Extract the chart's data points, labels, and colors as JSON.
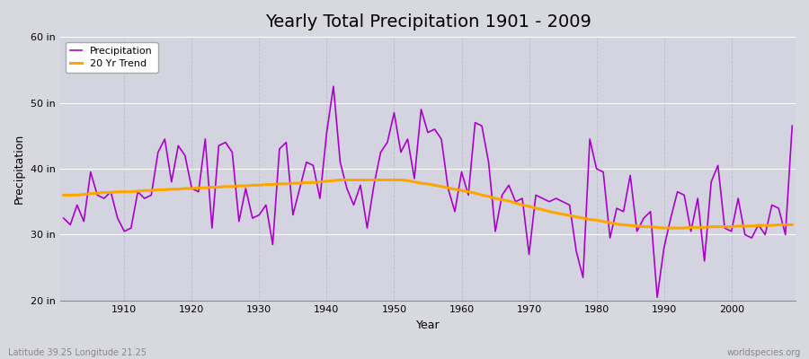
{
  "title": "Yearly Total Precipitation 1901 - 2009",
  "xlabel": "Year",
  "ylabel": "Precipitation",
  "years": [
    1901,
    1902,
    1903,
    1904,
    1905,
    1906,
    1907,
    1908,
    1909,
    1910,
    1911,
    1912,
    1913,
    1914,
    1915,
    1916,
    1917,
    1918,
    1919,
    1920,
    1921,
    1922,
    1923,
    1924,
    1925,
    1926,
    1927,
    1928,
    1929,
    1930,
    1931,
    1932,
    1933,
    1934,
    1935,
    1936,
    1937,
    1938,
    1939,
    1940,
    1941,
    1942,
    1943,
    1944,
    1945,
    1946,
    1947,
    1948,
    1949,
    1950,
    1951,
    1952,
    1953,
    1954,
    1955,
    1956,
    1957,
    1958,
    1959,
    1960,
    1961,
    1962,
    1963,
    1964,
    1965,
    1966,
    1967,
    1968,
    1969,
    1970,
    1971,
    1972,
    1973,
    1974,
    1975,
    1976,
    1977,
    1978,
    1979,
    1980,
    1981,
    1982,
    1983,
    1984,
    1985,
    1986,
    1987,
    1988,
    1989,
    1990,
    1991,
    1992,
    1993,
    1994,
    1995,
    1996,
    1997,
    1998,
    1999,
    2000,
    2001,
    2002,
    2003,
    2004,
    2005,
    2006,
    2007,
    2008,
    2009
  ],
  "precipitation": [
    32.5,
    31.5,
    34.5,
    32.0,
    39.5,
    36.0,
    35.5,
    36.5,
    32.5,
    30.5,
    31.0,
    36.5,
    35.5,
    36.0,
    42.5,
    44.5,
    38.0,
    43.5,
    42.0,
    37.0,
    36.5,
    44.5,
    31.0,
    43.5,
    44.0,
    42.5,
    32.0,
    37.0,
    32.5,
    33.0,
    34.5,
    28.5,
    43.0,
    44.0,
    33.0,
    37.0,
    41.0,
    40.5,
    35.5,
    45.5,
    52.5,
    41.0,
    37.0,
    34.5,
    37.5,
    31.0,
    37.5,
    42.5,
    44.0,
    48.5,
    42.5,
    44.5,
    38.5,
    49.0,
    45.5,
    46.0,
    44.5,
    37.0,
    33.5,
    39.5,
    36.0,
    47.0,
    46.5,
    41.0,
    30.5,
    36.0,
    37.5,
    35.0,
    35.5,
    27.0,
    36.0,
    35.5,
    35.0,
    35.5,
    35.0,
    34.5,
    27.5,
    23.5,
    44.5,
    40.0,
    39.5,
    29.5,
    34.0,
    33.5,
    39.0,
    30.5,
    32.5,
    33.5,
    20.5,
    28.0,
    32.5,
    36.5,
    36.0,
    30.5,
    35.5,
    26.0,
    38.0,
    40.5,
    31.0,
    30.5,
    35.5,
    30.0,
    29.5,
    31.5,
    30.0,
    34.5,
    34.0,
    30.0,
    46.5
  ],
  "trend": [
    36.0,
    36.0,
    36.0,
    36.1,
    36.2,
    36.3,
    36.4,
    36.4,
    36.5,
    36.5,
    36.5,
    36.6,
    36.7,
    36.7,
    36.8,
    36.8,
    36.9,
    36.9,
    37.0,
    37.0,
    37.1,
    37.1,
    37.2,
    37.2,
    37.3,
    37.3,
    37.4,
    37.4,
    37.5,
    37.5,
    37.6,
    37.6,
    37.7,
    37.7,
    37.8,
    37.8,
    37.9,
    37.9,
    38.0,
    38.1,
    38.2,
    38.3,
    38.3,
    38.3,
    38.3,
    38.3,
    38.3,
    38.3,
    38.3,
    38.3,
    38.3,
    38.2,
    38.0,
    37.8,
    37.7,
    37.5,
    37.3,
    37.1,
    36.9,
    36.7,
    36.5,
    36.3,
    36.0,
    35.8,
    35.5,
    35.3,
    35.1,
    34.8,
    34.5,
    34.3,
    34.0,
    33.8,
    33.5,
    33.3,
    33.1,
    32.9,
    32.7,
    32.5,
    32.3,
    32.2,
    32.0,
    31.8,
    31.6,
    31.5,
    31.4,
    31.3,
    31.2,
    31.2,
    31.1,
    31.0,
    31.0,
    31.0,
    31.0,
    31.1,
    31.1,
    31.1,
    31.2,
    31.2,
    31.2,
    31.2,
    31.3,
    31.3,
    31.3,
    31.4,
    31.4,
    31.4,
    31.5,
    31.5,
    31.5
  ],
  "ylim": [
    20,
    60
  ],
  "yticks": [
    20,
    30,
    40,
    50,
    60
  ],
  "ytick_labels": [
    "20 in",
    "30 in",
    "40 in",
    "50 in",
    "60 in"
  ],
  "xticks": [
    1910,
    1920,
    1930,
    1940,
    1950,
    1960,
    1970,
    1980,
    1990,
    2000
  ],
  "precip_color": "#AA00CC",
  "trend_color": "#FFA500",
  "fig_bg_color": "#D8D8E0",
  "plot_bg_color": "#D4D4E0",
  "grid_color_h": "#FFFFFF",
  "grid_color_v": "#BBBBCC",
  "title_fontsize": 14,
  "label_fontsize": 9,
  "tick_fontsize": 8,
  "legend_label_precip": "Precipitation",
  "legend_label_trend": "20 Yr Trend",
  "footer_left": "Latitude 39.25 Longitude 21.25",
  "footer_right": "worldspecies.org"
}
